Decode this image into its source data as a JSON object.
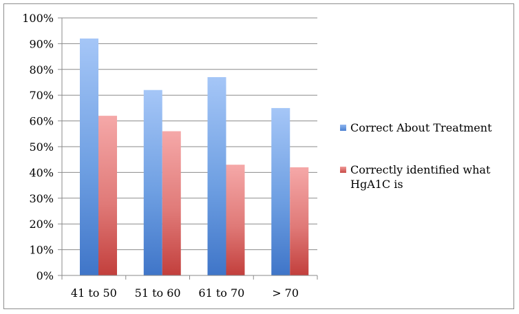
{
  "chart_data": {
    "type": "bar",
    "title": "",
    "xlabel": "",
    "ylabel": "",
    "categories": [
      "41 to 50",
      "51 to 60",
      "61 to 70",
      "> 70"
    ],
    "ylim": [
      0,
      100
    ],
    "yticks": [
      0,
      10,
      20,
      30,
      40,
      50,
      60,
      70,
      80,
      90,
      100
    ],
    "ytick_labels": [
      "0%",
      "10%",
      "20%",
      "30%",
      "40%",
      "50%",
      "60%",
      "70%",
      "80%",
      "90%",
      "100%"
    ],
    "grid": true,
    "legend_position": "right",
    "series": [
      {
        "name": "Correct About Treatment",
        "values": [
          92,
          72,
          77,
          65
        ],
        "color": "#4f81bd"
      },
      {
        "name": "Correctly identified what HgA1C is",
        "values": [
          62,
          56,
          43,
          42
        ],
        "color": "#c0504d"
      }
    ],
    "legend": {
      "items": [
        {
          "lines": [
            "Correct About Treatment"
          ]
        },
        {
          "lines": [
            "Correctly identified what",
            "HgA1C is"
          ]
        }
      ]
    }
  }
}
